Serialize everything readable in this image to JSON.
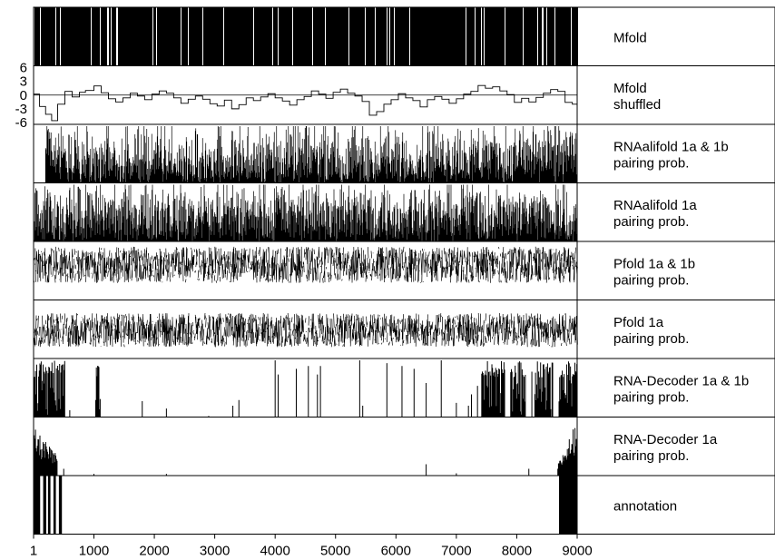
{
  "chart_data": {
    "type": "line",
    "title": "",
    "xlabel": "",
    "ylabel": "",
    "x_range": [
      1,
      9000
    ],
    "x_ticks": [
      {
        "value": 1,
        "label": "1"
      },
      {
        "value": 1000,
        "label": "1000"
      },
      {
        "value": 2000,
        "label": "2000"
      },
      {
        "value": 3000,
        "label": "3000"
      },
      {
        "value": 4000,
        "label": "4000"
      },
      {
        "value": 5000,
        "label": "5000"
      },
      {
        "value": 6000,
        "label": "6000"
      },
      {
        "value": 7000,
        "label": "7000"
      },
      {
        "value": 8000,
        "label": "8000"
      },
      {
        "value": 9000,
        "label": "9000"
      }
    ],
    "grid": false,
    "legend": "none",
    "tracks": [
      {
        "id": "mfold",
        "label_lines": [
          "Mfold"
        ],
        "style": "barcode",
        "description_values": "dense base-pairing marks along entire genome",
        "density": 0.92
      },
      {
        "id": "mfold-shuffled",
        "label_lines": [
          "Mfold",
          " shuffled"
        ],
        "style": "step",
        "y_range": [
          -6,
          6
        ],
        "y_ticks": [
          "6",
          "3",
          "0",
          "-3",
          "-6"
        ],
        "y_tick_values": [
          6,
          3,
          0,
          -3,
          -6
        ],
        "zero_line": true,
        "steps": [
          [
            1,
            0.2
          ],
          [
            100,
            -2.5
          ],
          [
            200,
            -4.2
          ],
          [
            300,
            -5.6
          ],
          [
            400,
            -2.0
          ],
          [
            520,
            0.8
          ],
          [
            640,
            -0.4
          ],
          [
            760,
            0.6
          ],
          [
            860,
            1.0
          ],
          [
            1000,
            2.0
          ],
          [
            1120,
            0.5
          ],
          [
            1240,
            -0.8
          ],
          [
            1360,
            -1.5
          ],
          [
            1480,
            -0.6
          ],
          [
            1600,
            0.4
          ],
          [
            1720,
            -0.2
          ],
          [
            1840,
            -1.0
          ],
          [
            1960,
            0.2
          ],
          [
            2080,
            0.9
          ],
          [
            2200,
            0.4
          ],
          [
            2320,
            -0.6
          ],
          [
            2440,
            -1.8
          ],
          [
            2560,
            -0.9
          ],
          [
            2680,
            -0.2
          ],
          [
            2800,
            -0.9
          ],
          [
            2920,
            -1.9
          ],
          [
            3040,
            -2.4
          ],
          [
            3160,
            -1.1
          ],
          [
            3280,
            -3.0
          ],
          [
            3400,
            -2.1
          ],
          [
            3520,
            -0.6
          ],
          [
            3640,
            -1.2
          ],
          [
            3760,
            -0.4
          ],
          [
            3880,
            0.3
          ],
          [
            4000,
            -0.6
          ],
          [
            4120,
            -1.3
          ],
          [
            4240,
            -2.2
          ],
          [
            4360,
            -1.0
          ],
          [
            4480,
            -0.3
          ],
          [
            4600,
            0.9
          ],
          [
            4720,
            0.2
          ],
          [
            4840,
            -0.7
          ],
          [
            4960,
            0.6
          ],
          [
            5080,
            1.3
          ],
          [
            5200,
            0.4
          ],
          [
            5320,
            -0.2
          ],
          [
            5440,
            -1.4
          ],
          [
            5560,
            -4.4
          ],
          [
            5680,
            -3.6
          ],
          [
            5800,
            -2.0
          ],
          [
            5920,
            -1.0
          ],
          [
            6040,
            0.3
          ],
          [
            6160,
            -0.6
          ],
          [
            6280,
            -1.2
          ],
          [
            6400,
            -2.6
          ],
          [
            6520,
            -1.0
          ],
          [
            6640,
            -0.3
          ],
          [
            6760,
            -0.9
          ],
          [
            6880,
            -1.8
          ],
          [
            7000,
            -0.8
          ],
          [
            7120,
            0.2
          ],
          [
            7240,
            0.8
          ],
          [
            7360,
            2.1
          ],
          [
            7480,
            1.5
          ],
          [
            7600,
            1.8
          ],
          [
            7720,
            0.9
          ],
          [
            7840,
            0.1
          ],
          [
            7960,
            -1.6
          ],
          [
            8080,
            -0.7
          ],
          [
            8200,
            -1.5
          ],
          [
            8320,
            -0.5
          ],
          [
            8440,
            0.4
          ],
          [
            8560,
            1.2
          ],
          [
            8680,
            0.8
          ],
          [
            8800,
            -1.6
          ],
          [
            8920,
            -2.0
          ],
          [
            9000,
            -2.0
          ]
        ]
      },
      {
        "id": "rnaalifold-1a-1b",
        "label_lines": [
          "RNAalifold 1a & 1b",
          " pairing prob."
        ],
        "style": "spikes",
        "y_range": [
          0,
          1
        ],
        "start": 200,
        "segments": [
          [
            200,
            500,
            0.65
          ],
          [
            500,
            2000,
            0.55
          ],
          [
            2000,
            3000,
            0.5
          ],
          [
            3000,
            4000,
            0.55
          ],
          [
            4000,
            5000,
            0.6
          ],
          [
            5000,
            6000,
            0.55
          ],
          [
            6000,
            7000,
            0.55
          ],
          [
            7000,
            8000,
            0.6
          ],
          [
            8000,
            9000,
            0.7
          ]
        ]
      },
      {
        "id": "rnaalifold-1a",
        "label_lines": [
          "RNAalifold 1a",
          " pairing prob."
        ],
        "style": "spikes",
        "y_range": [
          0,
          1
        ],
        "start": 1,
        "segments": [
          [
            1,
            1000,
            0.6
          ],
          [
            1000,
            2000,
            0.7
          ],
          [
            2000,
            3000,
            0.65
          ],
          [
            3000,
            4000,
            0.7
          ],
          [
            4000,
            5000,
            0.75
          ],
          [
            5000,
            6000,
            0.7
          ],
          [
            6000,
            7000,
            0.65
          ],
          [
            7000,
            8000,
            0.7
          ],
          [
            8000,
            9000,
            0.7
          ]
        ]
      },
      {
        "id": "pfold-1a-1b",
        "label_lines": [
          "Pfold 1a & 1b",
          " pairing prob."
        ],
        "style": "noise",
        "y_range": [
          0,
          1
        ],
        "center": 0.62,
        "spread": 0.32
      },
      {
        "id": "pfold-1a",
        "label_lines": [
          "Pfold 1a",
          " pairing prob."
        ],
        "style": "noise",
        "y_range": [
          0,
          1
        ],
        "center": 0.5,
        "spread": 0.3
      },
      {
        "id": "rna-decoder-1a-1b",
        "label_lines": [
          "RNA-Decoder 1a & 1b",
          " pairing prob."
        ],
        "style": "sparse",
        "y_range": [
          0,
          1
        ],
        "blocks": [
          [
            1,
            520
          ],
          [
            1030,
            1110
          ],
          [
            7420,
            7800
          ],
          [
            7900,
            8150
          ],
          [
            8300,
            8600
          ],
          [
            8700,
            9000
          ]
        ],
        "spikes": [
          [
            600,
            0.12
          ],
          [
            1800,
            0.28
          ],
          [
            2200,
            0.15
          ],
          [
            2900,
            0.02
          ],
          [
            3300,
            0.2
          ],
          [
            3400,
            0.3
          ],
          [
            4000,
            1.0
          ],
          [
            4050,
            0.75
          ],
          [
            4350,
            0.85
          ],
          [
            4550,
            0.9
          ],
          [
            4700,
            0.75
          ],
          [
            4750,
            0.9
          ],
          [
            5400,
            1.0
          ],
          [
            5450,
            0.2
          ],
          [
            5850,
            0.95
          ],
          [
            6100,
            0.9
          ],
          [
            6300,
            0.85
          ],
          [
            6500,
            0.6
          ],
          [
            6750,
            1.0
          ],
          [
            7000,
            0.25
          ],
          [
            7200,
            0.2
          ],
          [
            7250,
            0.4
          ],
          [
            7350,
            0.55
          ],
          [
            8250,
            0.8
          ]
        ]
      },
      {
        "id": "rna-decoder-1a",
        "label_lines": [
          "RNA-Decoder 1a",
          " pairing prob."
        ],
        "style": "sparse-ends",
        "y_range": [
          0,
          1
        ],
        "start_block": [
          1,
          400
        ],
        "end_block": [
          8680,
          9000
        ],
        "spikes": [
          [
            500,
            0.12
          ],
          [
            1000,
            0.03
          ],
          [
            2200,
            0.03
          ],
          [
            6500,
            0.2
          ],
          [
            7000,
            0.04
          ],
          [
            8200,
            0.12
          ]
        ]
      },
      {
        "id": "annotation",
        "label_lines": [
          "annotation"
        ],
        "style": "annotation",
        "blocks": [
          [
            1,
            110
          ],
          [
            160,
            210
          ],
          [
            240,
            280
          ],
          [
            330,
            370
          ],
          [
            420,
            470
          ],
          [
            8700,
            9000
          ]
        ]
      }
    ]
  }
}
